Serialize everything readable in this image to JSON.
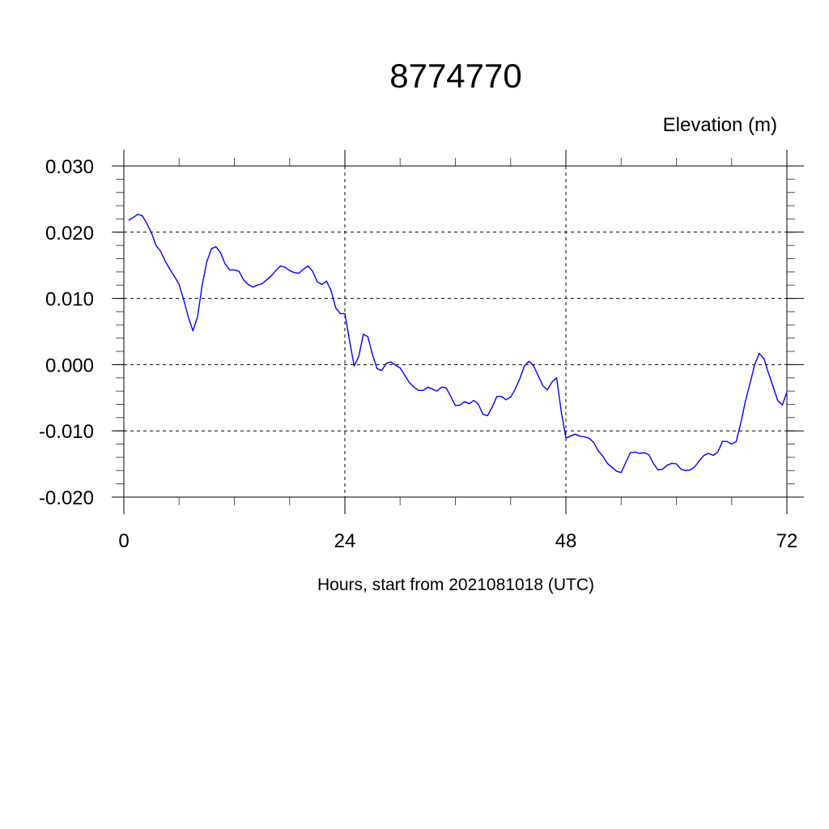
{
  "chart_data": {
    "type": "line",
    "title": "8774770",
    "ylabel": "Elevation (m)",
    "xlabel": "Hours, start from 2021081018 (UTC)",
    "xlim": [
      0,
      72
    ],
    "ylim": [
      -0.02,
      0.03
    ],
    "x_ticks": [
      0,
      24,
      48,
      72
    ],
    "x_tick_labels": [
      "0",
      "24",
      "48",
      "72"
    ],
    "x_minor_step": 6,
    "y_ticks": [
      -0.02,
      -0.01,
      0.0,
      0.01,
      0.02,
      0.03
    ],
    "y_tick_labels": [
      "-0.020",
      "-0.010",
      "0.000",
      "0.010",
      "0.020",
      "0.030"
    ],
    "y_minor_step": 0.002,
    "grid": "dashed at major ticks",
    "colors": {
      "line": "#0000ff",
      "axes": "#000000"
    },
    "series": [
      {
        "x": [
          0.5,
          1,
          1.5,
          2,
          2.5,
          3,
          3.5,
          4,
          4.5,
          5,
          5.5,
          6,
          6.5,
          7,
          7.5,
          8,
          8.5,
          9,
          9.5,
          10,
          10.5,
          11,
          11.5,
          12,
          12.5,
          13,
          13.5,
          14,
          14.5,
          15,
          15.5,
          16,
          16.5,
          17,
          17.5,
          18,
          18.5,
          19,
          19.5,
          20,
          20.5,
          21,
          21.5,
          22,
          22.5,
          23,
          23.5,
          24,
          24.5,
          25,
          25.5,
          26,
          26.5,
          27,
          27.5,
          28,
          28.5,
          29,
          29.5,
          30,
          30.5,
          31,
          31.5,
          32,
          32.5,
          33,
          33.5,
          34,
          34.5,
          35,
          35.5,
          36,
          36.5,
          37,
          37.5,
          38,
          38.5,
          39,
          39.5,
          40,
          40.5,
          41,
          41.5,
          42,
          42.5,
          43,
          43.5,
          44,
          44.5,
          45,
          45.5,
          46,
          46.5,
          47,
          47.5,
          48,
          48.5,
          49,
          49.5,
          50,
          50.5,
          51,
          51.5,
          52,
          52.5,
          53,
          53.5,
          54,
          54.5,
          55,
          55.5,
          56,
          56.5,
          57,
          57.5,
          58,
          58.5,
          59,
          59.5,
          60,
          60.5,
          61,
          61.5,
          62,
          62.5,
          63,
          63.5,
          64,
          64.5,
          65,
          65.5,
          66,
          66.5,
          67,
          67.5,
          68,
          68.5,
          69,
          69.5,
          70,
          70.5,
          71,
          71.5,
          72
        ],
        "y": [
          0.0218,
          0.0222,
          0.0227,
          0.0225,
          0.0213,
          0.0199,
          0.018,
          0.0171,
          0.0156,
          0.0144,
          0.0133,
          0.0121,
          0.0098,
          0.0072,
          0.0051,
          0.0072,
          0.012,
          0.0155,
          0.0175,
          0.0178,
          0.0169,
          0.0152,
          0.0143,
          0.0143,
          0.0141,
          0.0128,
          0.0121,
          0.0117,
          0.012,
          0.0122,
          0.0128,
          0.0134,
          0.0142,
          0.0149,
          0.0147,
          0.0142,
          0.0139,
          0.0138,
          0.0144,
          0.0149,
          0.0141,
          0.0125,
          0.0121,
          0.0126,
          0.0112,
          0.0086,
          0.0077,
          0.0077,
          0.0037,
          -0.0002,
          0.0012,
          0.0046,
          0.0042,
          0.0015,
          -0.0006,
          -0.0009,
          0.0002,
          0.0004,
          -0.0001,
          -0.0005,
          -0.0016,
          -0.0027,
          -0.0034,
          -0.0039,
          -0.0039,
          -0.0034,
          -0.0037,
          -0.004,
          -0.0034,
          -0.0035,
          -0.0048,
          -0.0062,
          -0.0061,
          -0.0056,
          -0.0059,
          -0.0054,
          -0.006,
          -0.0075,
          -0.0077,
          -0.0064,
          -0.0048,
          -0.0048,
          -0.0053,
          -0.0049,
          -0.0037,
          -0.0021,
          -0.0002,
          0.0005,
          -0.0002,
          -0.0017,
          -0.0032,
          -0.0038,
          -0.0026,
          -0.002,
          -0.0071,
          -0.0111,
          -0.0108,
          -0.0105,
          -0.0108,
          -0.0109,
          -0.0111,
          -0.0117,
          -0.013,
          -0.0138,
          -0.0149,
          -0.0155,
          -0.0161,
          -0.0163,
          -0.0148,
          -0.0133,
          -0.0132,
          -0.0134,
          -0.0133,
          -0.0136,
          -0.0149,
          -0.0159,
          -0.0158,
          -0.0152,
          -0.0149,
          -0.015,
          -0.0158,
          -0.016,
          -0.0159,
          -0.0154,
          -0.0145,
          -0.0137,
          -0.0134,
          -0.0137,
          -0.0132,
          -0.0116,
          -0.0116,
          -0.012,
          -0.0116,
          -0.0088,
          -0.0055,
          -0.0028,
          0.0,
          0.0017,
          0.0009,
          -0.0013,
          -0.0033,
          -0.0054,
          -0.0061,
          -0.0042
        ]
      }
    ]
  }
}
